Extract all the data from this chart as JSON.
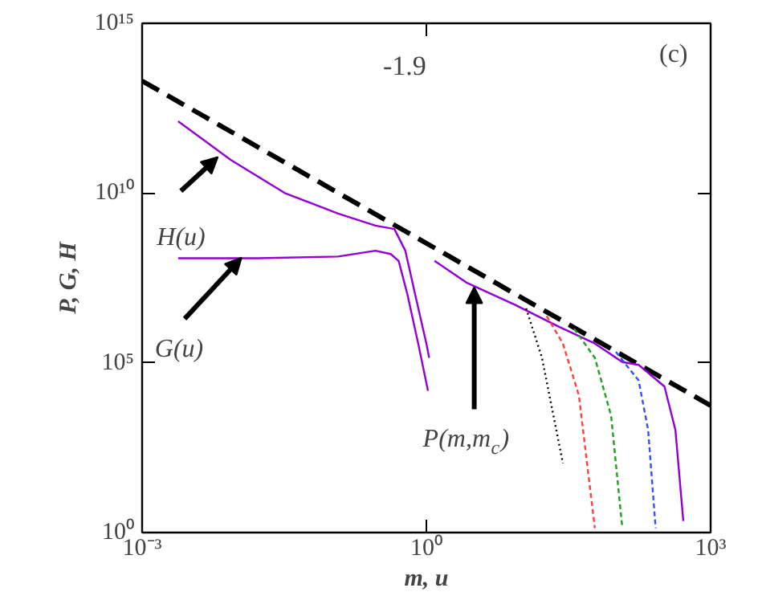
{
  "chart_data": {
    "type": "line",
    "xlabel": "m, u",
    "ylabel": "P, G, H",
    "log": "xy",
    "xlim": [
      0.001,
      1000
    ],
    "ylim": [
      1,
      1000000000000000.0
    ],
    "xticks": [
      {
        "value": 0.001,
        "label": "10⁻³"
      },
      {
        "value": 1,
        "label": "10⁰"
      },
      {
        "value": 1000,
        "label": "10³"
      }
    ],
    "yticks": [
      {
        "value": 1,
        "label": "10⁰"
      },
      {
        "value": 100000,
        "label": "10⁵"
      },
      {
        "value": 10000000000.0,
        "label": "10¹⁰"
      },
      {
        "value": 1000000000000000.0,
        "label": "10¹⁵"
      }
    ],
    "series": [
      {
        "color": "#000000",
        "line_style": "dashed",
        "x": [
          0.001,
          1000
        ],
        "values": [
          20000000000000.0,
          5500
        ]
      },
      {
        "color": "#9400d3",
        "line_style": "solid",
        "x": [
          0.0024,
          0.0086,
          0.032,
          0.117,
          0.29,
          0.46,
          0.6,
          0.76,
          1.0,
          1.07
        ],
        "values": [
          1300000000000.0,
          95000000000.0,
          10000000000.0,
          2500000000.0,
          1100000000.0,
          870000000.0,
          200000000.0,
          10500000.0,
          370000,
          140000
        ]
      },
      {
        "color": "#9400d3",
        "line_style": "solid",
        "x": [
          0.0024,
          0.0166,
          0.117,
          0.29,
          0.42,
          0.51,
          0.63,
          0.82,
          1.04
        ],
        "values": [
          120000000.0,
          120000000.0,
          135000000.0,
          200000000.0,
          160000000.0,
          100000000.0,
          10500000.0,
          370000,
          15000
        ]
      },
      {
        "color": "#9400d3",
        "line_style": "solid",
        "x": [
          1.22,
          2.65,
          8.5,
          24.4,
          60,
          117,
          174,
          326,
          425,
          515
        ],
        "values": [
          100000000.0,
          23000000.0,
          5200000.0,
          1200000.0,
          370000,
          105000,
          87000,
          20000,
          1050,
          2.2
        ]
      },
      {
        "color": "#000000",
        "line_style": "dotted",
        "x": [
          11.3,
          16.6,
          27.6
        ],
        "values": [
          4000000.0,
          140000,
          110
        ]
      },
      {
        "color": "#ff4040",
        "line_style": "dashed",
        "x": [
          18.6,
          27.6,
          40.7,
          60
        ],
        "values": [
          2400000.0,
          370000,
          11000,
          1.35
        ]
      },
      {
        "color": "#20a020",
        "line_style": "dashed",
        "x": [
          36.3,
          60,
          89,
          117
        ],
        "values": [
          1000000.0,
          140000,
          2800,
          1.35
        ]
      },
      {
        "color": "#3050ff",
        "line_style": "dashed",
        "x": [
          100,
          174,
          219,
          263
        ],
        "values": [
          210000,
          30000,
          1050,
          1.35
        ]
      }
    ],
    "annotations": [
      "(c)",
      "-1.9",
      {
        "text": "H(u)",
        "x": 0.0063,
        "y": 115000000000.0
      },
      {
        "text": "G(u)",
        "x": 0.0112,
        "y": 125000000.0
      },
      {
        "text": "P(m,m$_{c}$)",
        "x": 3.2,
        "y": 17000000.0
      }
    ]
  }
}
